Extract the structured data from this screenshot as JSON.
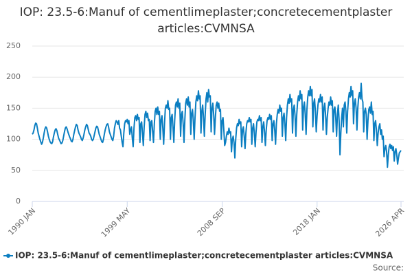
{
  "chart_data": {
    "type": "line",
    "title": "IOP: 23.5-6:Manuf of cementlimeplaster;concretecementplaster articles:CVMNSA",
    "source": "Source:",
    "categories": [
      "1990 JAN",
      null,
      null,
      null,
      null,
      null,
      null,
      null,
      null,
      null,
      null,
      null,
      null,
      null,
      null,
      null,
      null,
      null,
      null,
      null,
      null,
      null,
      null,
      null,
      null,
      null,
      null,
      null,
      null,
      null,
      null,
      null,
      null,
      null,
      null,
      null,
      null,
      null,
      null,
      null,
      null,
      null,
      null,
      null,
      null,
      null,
      null,
      null,
      null,
      null,
      null,
      null,
      null,
      null,
      null,
      null,
      null,
      null,
      null,
      null,
      null,
      null,
      null,
      null,
      null,
      null,
      null,
      null,
      null,
      null,
      null,
      null,
      null,
      null,
      null,
      null,
      null,
      null,
      null,
      null,
      null,
      null,
      null,
      null,
      null,
      null,
      null,
      null,
      null,
      null,
      null,
      null,
      null,
      null,
      null,
      null,
      null,
      null,
      null,
      null,
      null,
      null,
      null,
      null,
      null,
      null,
      null,
      null,
      null,
      null,
      null,
      null,
      "1999 MAY",
      null,
      null,
      null,
      null,
      null,
      null,
      null,
      null,
      null,
      null,
      null,
      null,
      null,
      null,
      null,
      null,
      null,
      null,
      null,
      null,
      null,
      null,
      null,
      null,
      null,
      null,
      null,
      null,
      null,
      null,
      null,
      null,
      null,
      null,
      null,
      null,
      null,
      null,
      null,
      null,
      null,
      null,
      null,
      null,
      null,
      null,
      null,
      null,
      null,
      null,
      null,
      null,
      null,
      null,
      null,
      null,
      null,
      null,
      null,
      null,
      null,
      null,
      null,
      null,
      null,
      null,
      null,
      null,
      null,
      null,
      null,
      null,
      null,
      null,
      null,
      null,
      null,
      null,
      null,
      null,
      null,
      null,
      null,
      null,
      null,
      null,
      null,
      null,
      null,
      null,
      null,
      null,
      null,
      null,
      null,
      null,
      null,
      null,
      null,
      null,
      null,
      null,
      null,
      null,
      null,
      null,
      null,
      null,
      null,
      null,
      null,
      "2008 SEP",
      null,
      null,
      null,
      null,
      null,
      null,
      null,
      null,
      null,
      null,
      null,
      null,
      null,
      null,
      null,
      null,
      null,
      null,
      null,
      null,
      null,
      null,
      null,
      null,
      null,
      null,
      null,
      null,
      null,
      null,
      null,
      null,
      null,
      null,
      null,
      null,
      null,
      null,
      null,
      null,
      null,
      null,
      null,
      null,
      null,
      null,
      null,
      null,
      null,
      null,
      null,
      null,
      null,
      null,
      null,
      null,
      null,
      null,
      null,
      null,
      null,
      null,
      null,
      null,
      null,
      null,
      null,
      null,
      null,
      null,
      null,
      null,
      null,
      null,
      null,
      null,
      null,
      null,
      null,
      null,
      null,
      null,
      null,
      null,
      null,
      null,
      null,
      null,
      null,
      null,
      null,
      null,
      null,
      null,
      null,
      null,
      null,
      null,
      null,
      null,
      null,
      null,
      null,
      null,
      null,
      null,
      null,
      null,
      null,
      null,
      null,
      "2018 JAN",
      null,
      null,
      null,
      null,
      null,
      null,
      null,
      null,
      null,
      null,
      null,
      null,
      null,
      null,
      null,
      null,
      null,
      null,
      null,
      null,
      null,
      null,
      null,
      null,
      null,
      null,
      null,
      null,
      null,
      null,
      null,
      null,
      null,
      null,
      null,
      null,
      null,
      null,
      null,
      null,
      null,
      null,
      null,
      null,
      null,
      null,
      null,
      null,
      null,
      null,
      null,
      null,
      null,
      null,
      null,
      null,
      null,
      null,
      null,
      null,
      null,
      null,
      null,
      null,
      null,
      null,
      null,
      null,
      null,
      null,
      null,
      null,
      null,
      null,
      null,
      null,
      null,
      null,
      null,
      null,
      null,
      null,
      null,
      null,
      null,
      null,
      null,
      null,
      null,
      null,
      null,
      null,
      null,
      null,
      null,
      null,
      null,
      null,
      "2026 APR"
    ],
    "series": [
      {
        "name": "IOP: 23.5-6:Manuf of cementlimeplaster;concretecementplaster articles:CVMNSA",
        "color": "#0b7ec1",
        "values": [
          108,
          110,
          115,
          122,
          126,
          125,
          118,
          110,
          105,
          100,
          96,
          92,
          95,
          102,
          110,
          117,
          120,
          118,
          112,
          105,
          100,
          96,
          94,
          93,
          96,
          104,
          110,
          115,
          117,
          114,
          108,
          102,
          99,
          96,
          93,
          94,
          98,
          105,
          112,
          118,
          120,
          117,
          112,
          108,
          104,
          101,
          97,
          96,
          100,
          108,
          114,
          120,
          124,
          122,
          115,
          110,
          107,
          104,
          100,
          98,
          102,
          108,
          115,
          120,
          124,
          122,
          116,
          110,
          108,
          105,
          100,
          98,
          100,
          106,
          112,
          118,
          121,
          120,
          114,
          108,
          104,
          100,
          96,
          95,
          100,
          108,
          115,
          120,
          124,
          125,
          120,
          112,
          108,
          104,
          100,
          98,
          105,
          118,
          125,
          130,
          128,
          124,
          130,
          118,
          115,
          105,
          95,
          88,
          110,
          125,
          130,
          128,
          132,
          125,
          130,
          108,
          115,
          120,
          102,
          88,
          118,
          135,
          138,
          130,
          140,
          132,
          135,
          95,
          125,
          128,
          110,
          90,
          120,
          140,
          145,
          135,
          142,
          130,
          132,
          98,
          128,
          130,
          112,
          95,
          125,
          145,
          150,
          140,
          152,
          140,
          145,
          100,
          132,
          138,
          118,
          92,
          125,
          150,
          155,
          150,
          162,
          148,
          150,
          100,
          135,
          140,
          120,
          95,
          130,
          155,
          160,
          152,
          165,
          150,
          158,
          105,
          140,
          145,
          125,
          95,
          132,
          158,
          165,
          155,
          168,
          152,
          160,
          108,
          142,
          148,
          130,
          100,
          135,
          160,
          170,
          162,
          178,
          165,
          170,
          110,
          145,
          155,
          135,
          105,
          140,
          165,
          175,
          160,
          180,
          168,
          170,
          112,
          150,
          158,
          140,
          108,
          135,
          155,
          160,
          150,
          158,
          145,
          148,
          100,
          130,
          135,
          115,
          90,
          95,
          105,
          112,
          108,
          118,
          110,
          112,
          80,
          100,
          105,
          95,
          70,
          100,
          118,
          125,
          122,
          132,
          125,
          128,
          88,
          115,
          120,
          105,
          85,
          110,
          125,
          130,
          128,
          135,
          128,
          132,
          92,
          118,
          125,
          110,
          88,
          112,
          128,
          132,
          130,
          138,
          130,
          135,
          95,
          120,
          128,
          112,
          90,
          115,
          130,
          135,
          132,
          140,
          132,
          138,
          98,
          125,
          130,
          115,
          92,
          125,
          140,
          148,
          142,
          155,
          145,
          150,
          105,
          135,
          142,
          125,
          98,
          135,
          155,
          165,
          158,
          172,
          160,
          165,
          110,
          148,
          155,
          138,
          105,
          140,
          160,
          170,
          162,
          178,
          165,
          172,
          115,
          152,
          160,
          140,
          108,
          148,
          168,
          178,
          170,
          185,
          170,
          180,
          120,
          158,
          165,
          145,
          112,
          138,
          155,
          165,
          160,
          172,
          160,
          168,
          115,
          150,
          158,
          140,
          108,
          135,
          150,
          160,
          155,
          168,
          155,
          162,
          112,
          148,
          152,
          135,
          105,
          140,
          155,
          130,
          75,
          110,
          135,
          150,
          120,
          155,
          160,
          145,
          110,
          145,
          165,
          175,
          168,
          185,
          170,
          178,
          125,
          158,
          165,
          150,
          115,
          150,
          168,
          175,
          165,
          190,
          165,
          160,
          112,
          145,
          150,
          140,
          100,
          130,
          148,
          152,
          142,
          160,
          140,
          145,
          98,
          125,
          130,
          115,
          90,
          110,
          120,
          125,
          108,
          115,
          100,
          105,
          72,
          85,
          90,
          80,
          55,
          75,
          88,
          92,
          85,
          90,
          82,
          88,
          65,
          80,
          85,
          75,
          60,
          70,
          78,
          80,
          82
        ]
      }
    ],
    "ylim": [
      0,
      250
    ],
    "yticks": [
      0,
      50,
      100,
      150,
      200,
      250
    ],
    "grid": true
  }
}
